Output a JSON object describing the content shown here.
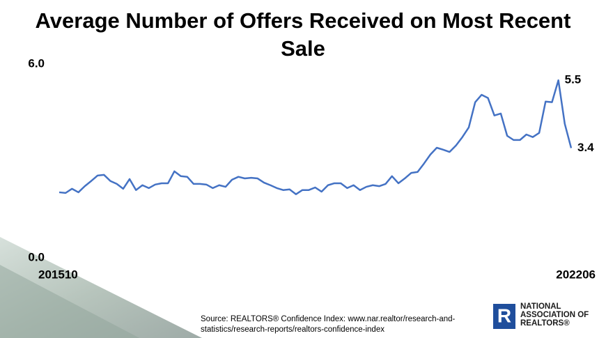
{
  "chart_data": {
    "type": "line",
    "title": "Average Number of Offers Received on Most Recent Sale",
    "categories": [
      "201510",
      null,
      null,
      null,
      null,
      null,
      null,
      null,
      null,
      null,
      null,
      null,
      null,
      null,
      null,
      null,
      null,
      null,
      null,
      null,
      null,
      null,
      null,
      null,
      null,
      null,
      null,
      null,
      null,
      null,
      null,
      null,
      null,
      null,
      null,
      null,
      null,
      null,
      null,
      null,
      null,
      null,
      null,
      null,
      null,
      null,
      null,
      null,
      null,
      null,
      null,
      null,
      null,
      null,
      null,
      null,
      null,
      null,
      null,
      null,
      null,
      null,
      null,
      null,
      null,
      null,
      null,
      null,
      null,
      null,
      null,
      null,
      null,
      null,
      null,
      null,
      null,
      null,
      null,
      null,
      "202206"
    ],
    "values": [
      2.03,
      2.01,
      2.14,
      2.03,
      2.22,
      2.38,
      2.55,
      2.57,
      2.38,
      2.29,
      2.14,
      2.44,
      2.1,
      2.25,
      2.16,
      2.27,
      2.31,
      2.31,
      2.68,
      2.53,
      2.51,
      2.29,
      2.29,
      2.27,
      2.16,
      2.25,
      2.2,
      2.42,
      2.51,
      2.46,
      2.48,
      2.46,
      2.33,
      2.25,
      2.16,
      2.1,
      2.12,
      1.97,
      2.1,
      2.1,
      2.18,
      2.05,
      2.25,
      2.31,
      2.31,
      2.16,
      2.25,
      2.1,
      2.2,
      2.25,
      2.22,
      2.29,
      2.53,
      2.31,
      2.46,
      2.63,
      2.66,
      2.92,
      3.2,
      3.41,
      3.35,
      3.28,
      3.48,
      3.74,
      4.04,
      4.82,
      5.05,
      4.95,
      4.41,
      4.47,
      3.78,
      3.65,
      3.65,
      3.82,
      3.74,
      3.87,
      4.84,
      4.82,
      5.5,
      4.15,
      3.4
    ],
    "value_labels": [
      null,
      null,
      null,
      null,
      null,
      null,
      null,
      null,
      null,
      null,
      null,
      null,
      null,
      null,
      null,
      null,
      null,
      null,
      null,
      null,
      null,
      null,
      null,
      null,
      null,
      null,
      null,
      null,
      null,
      null,
      null,
      null,
      null,
      null,
      null,
      null,
      null,
      null,
      null,
      null,
      null,
      null,
      null,
      null,
      null,
      null,
      null,
      null,
      null,
      null,
      null,
      null,
      null,
      null,
      null,
      null,
      null,
      null,
      null,
      null,
      null,
      null,
      null,
      null,
      null,
      null,
      null,
      null,
      null,
      null,
      null,
      null,
      null,
      null,
      null,
      null,
      null,
      null,
      "5.5",
      null,
      "3.4"
    ],
    "color": "#4472c4",
    "ylim": [
      0,
      6
    ],
    "yticks": [
      {
        "value": 0,
        "label": "0.0"
      },
      {
        "value": 6,
        "label": "6.0"
      }
    ],
    "source": "Source: REALTORS® Confidence Index: www.nar.realtor/research-and-statistics/research-reports/realtors-confidence-index"
  },
  "logo": {
    "lines": [
      "NATIONAL",
      "ASSOCIATION OF",
      "REALTORS®"
    ]
  }
}
